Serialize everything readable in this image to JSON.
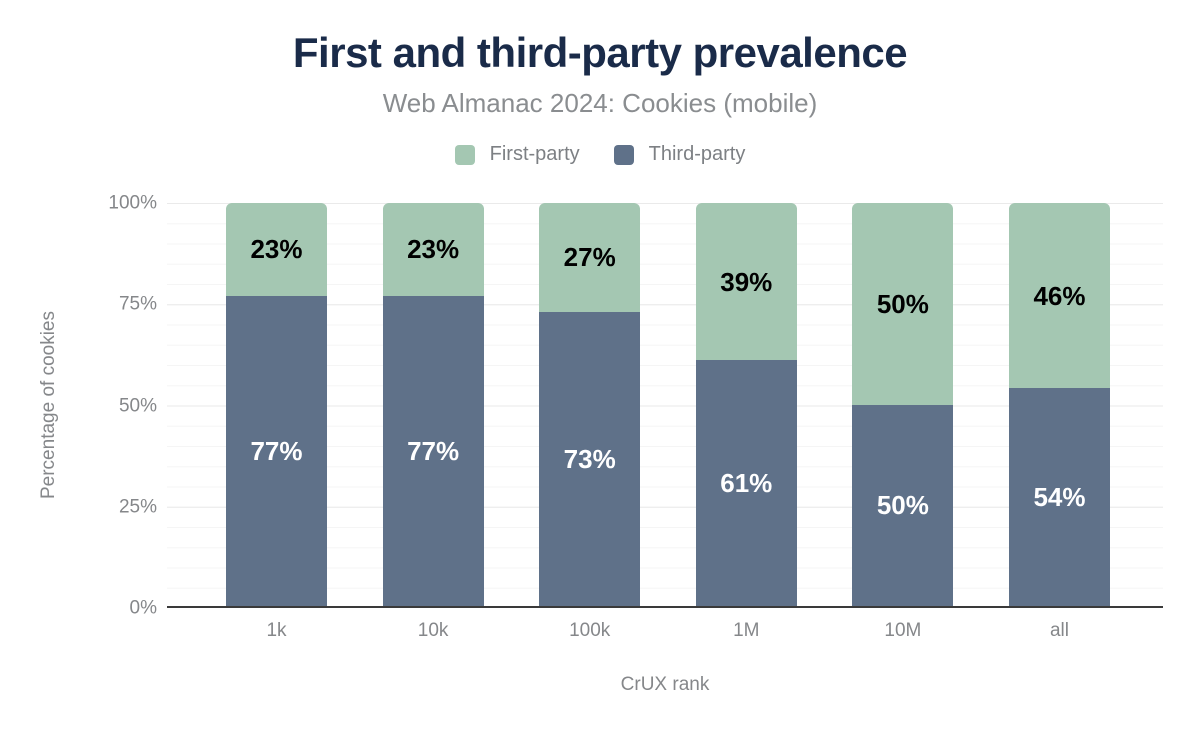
{
  "header": {
    "title": "First and third-party prevalence",
    "subtitle": "Web Almanac 2024: Cookies (mobile)"
  },
  "legend": {
    "items": [
      {
        "label": "First-party",
        "color": "#a4c7b2"
      },
      {
        "label": "Third-party",
        "color": "#5f7189"
      }
    ]
  },
  "axes": {
    "x_title": "CrUX rank",
    "y_title": "Percentage of cookies",
    "y_ticks": [
      "100%",
      "75%",
      "50%",
      "25%",
      "0%"
    ]
  },
  "colors": {
    "title": "#1a2b49",
    "subtitle": "#8a8d90",
    "axis_text": "#85878a",
    "first_party": "#a4c7b2",
    "third_party": "#5f7189",
    "axis_line": "#3a3a3a",
    "grid_major": "#eaeaea",
    "grid_minor": "#f5f5f5",
    "background": "#ffffff"
  },
  "chart_data": {
    "type": "bar",
    "stacked": true,
    "title": "First and third-party prevalence",
    "subtitle": "Web Almanac 2024: Cookies (mobile)",
    "xlabel": "CrUX rank",
    "ylabel": "Percentage of cookies",
    "categories": [
      "1k",
      "10k",
      "100k",
      "1M",
      "10M",
      "all"
    ],
    "series": [
      {
        "name": "Third-party",
        "color": "#5f7189",
        "label_color": "#ffffff",
        "values": [
          77,
          77,
          73,
          61,
          50,
          54
        ]
      },
      {
        "name": "First-party",
        "color": "#a4c7b2",
        "label_color": "#000000",
        "values": [
          23,
          23,
          27,
          39,
          50,
          46
        ]
      }
    ],
    "ylim": [
      0,
      100
    ],
    "y_tick_step": 25,
    "grid": "horizontal, minor every 5%, major every 25%",
    "legend_position": "top",
    "value_suffix": "%"
  }
}
